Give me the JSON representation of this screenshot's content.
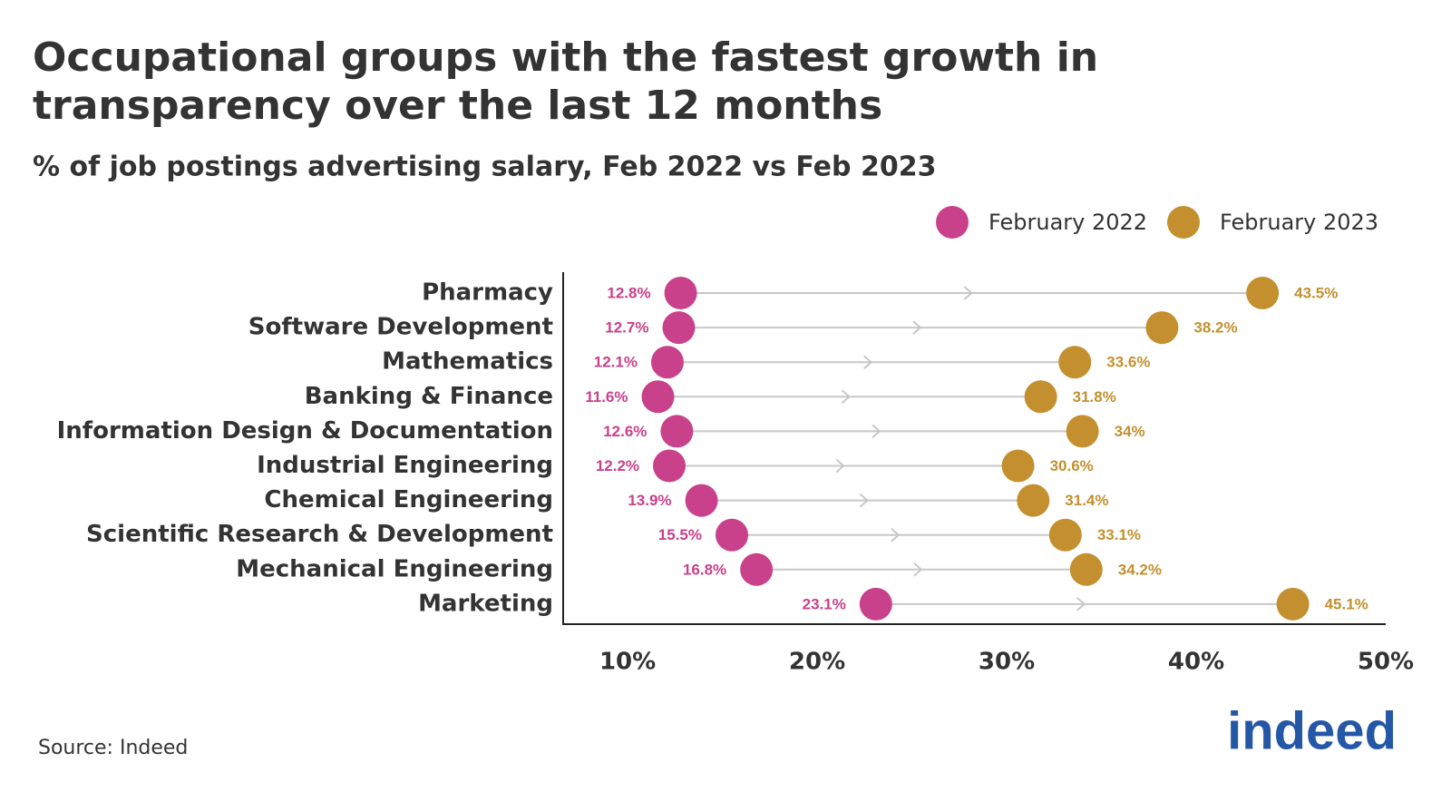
{
  "chart_data": {
    "type": "dumbbell",
    "title_lines": [
      "Occupational groups with the fastest growth in",
      "transparency over the last 12 months"
    ],
    "subtitle": "% of job postings advertising salary, Feb 2022 vs Feb 2023",
    "categories": [
      "Pharmacy",
      "Software Development",
      "Mathematics",
      "Banking & Finance",
      "Information Design & Documentation",
      "Industrial Engineering",
      "Chemical Engineering",
      "Scientific Research & Development",
      "Mechanical Engineering",
      "Marketing"
    ],
    "series": [
      {
        "name": "February 2022",
        "color": "#c9418b",
        "values": [
          12.8,
          12.7,
          12.1,
          11.6,
          12.6,
          12.2,
          13.9,
          15.5,
          16.8,
          23.1
        ],
        "value_labels": [
          "12.8%",
          "12.7%",
          "12.1%",
          "11.6%",
          "12.6%",
          "12.2%",
          "13.9%",
          "15.5%",
          "16.8%",
          "23.1%"
        ]
      },
      {
        "name": "February 2023",
        "color": "#c4902f",
        "values": [
          43.5,
          38.2,
          33.6,
          31.8,
          34,
          30.6,
          31.4,
          33.1,
          34.2,
          45.1
        ],
        "value_labels": [
          "43.5%",
          "38.2%",
          "33.6%",
          "31.8%",
          "34%",
          "30.6%",
          "31.4%",
          "33.1%",
          "34.2%",
          "45.1%"
        ]
      }
    ],
    "xlim": [
      6.6,
      50
    ],
    "xticks": [
      {
        "value": 10,
        "label": "10%"
      },
      {
        "value": 20,
        "label": "20%"
      },
      {
        "value": 30,
        "label": "30%"
      },
      {
        "value": 40,
        "label": "40%"
      },
      {
        "value": 50,
        "label": "50%"
      }
    ],
    "legend_position": "top-right",
    "source": "Source: Indeed",
    "logo": "indeed"
  }
}
